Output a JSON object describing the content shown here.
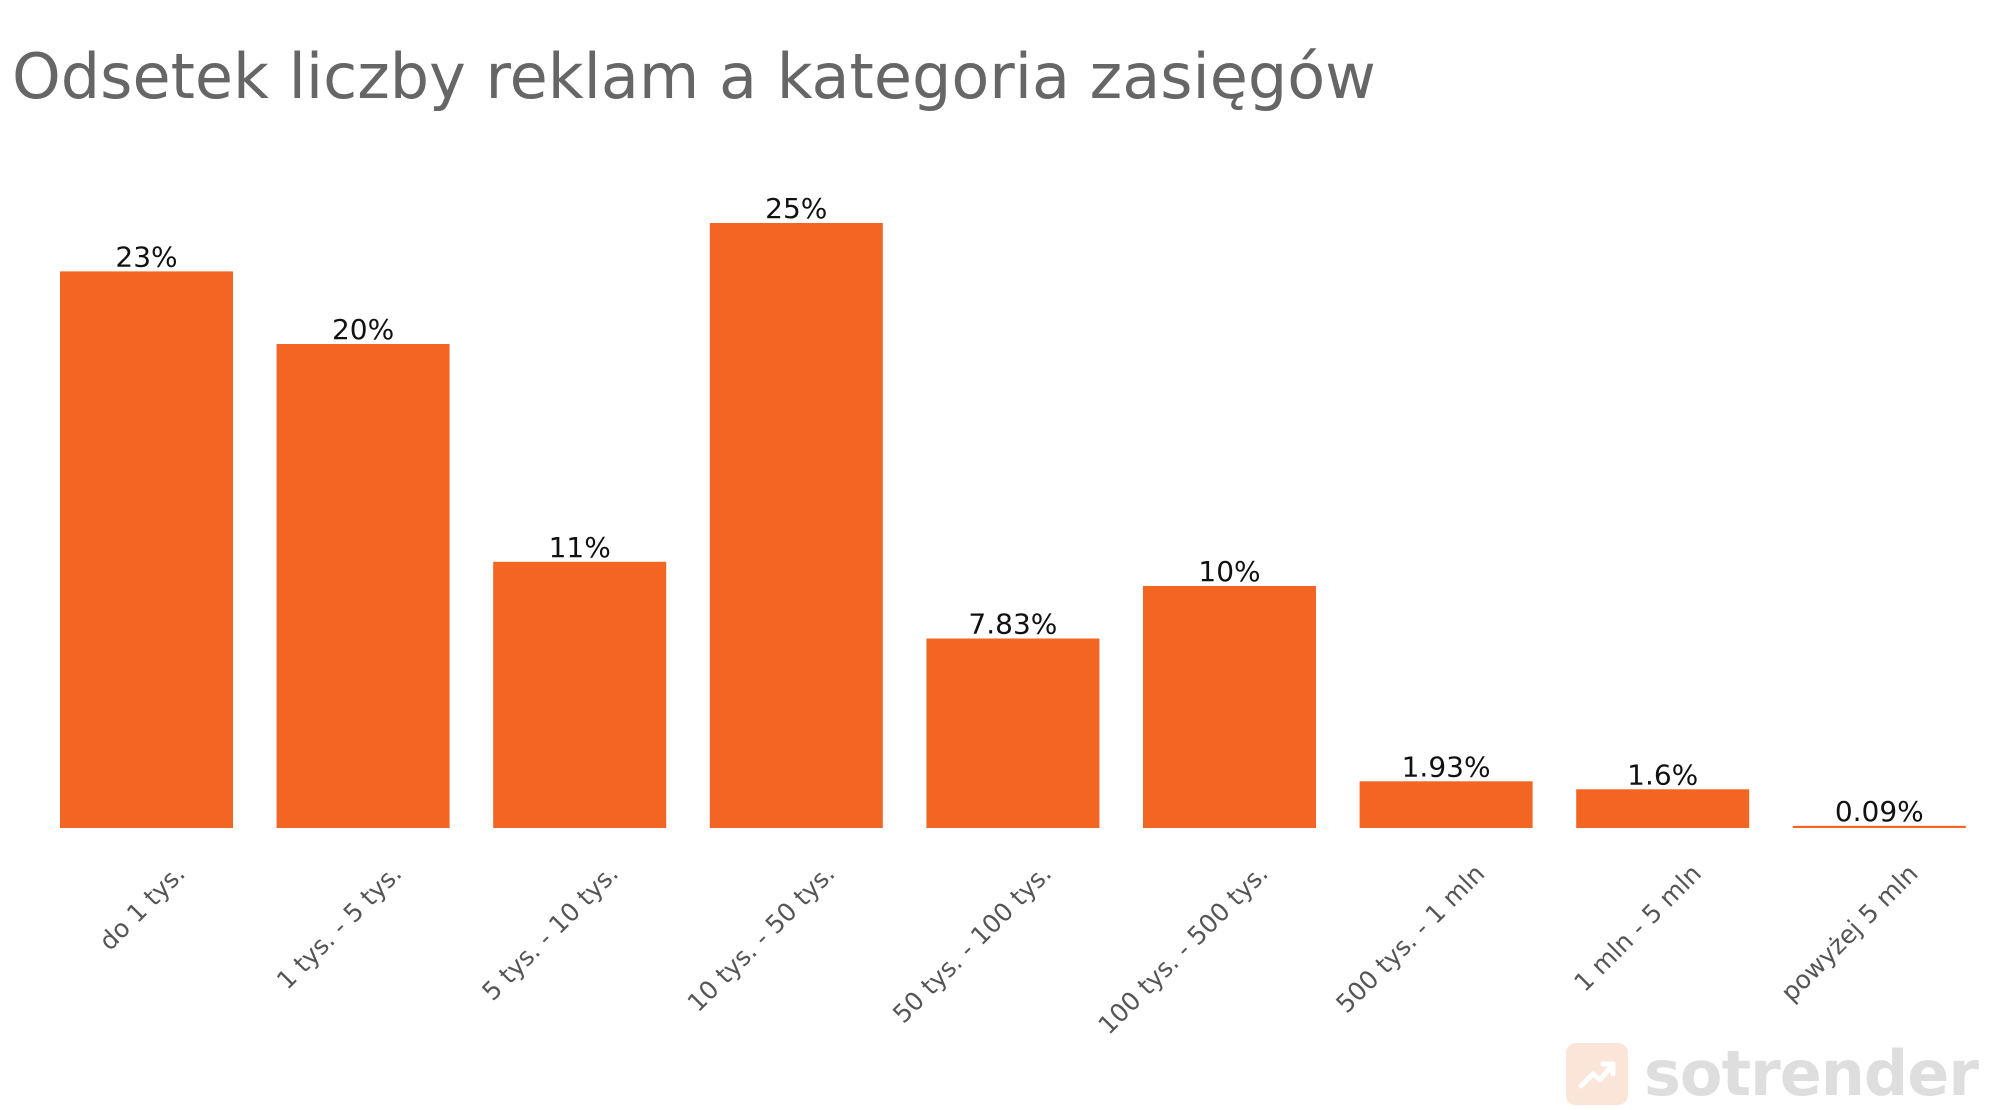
{
  "title": "Odsetek liczby reklam a kategoria zasięgów",
  "brand": {
    "name": "sotrender",
    "icon": "trend-arrow-icon",
    "color": "#f4a37a"
  },
  "colors": {
    "bar": "#f26522",
    "title": "#666666",
    "value_label": "#111111",
    "tick_label": "#555555"
  },
  "chart_data": {
    "type": "bar",
    "title": "Odsetek liczby reklam a kategoria zasięgów",
    "xlabel": "",
    "ylabel": "",
    "ylim": [
      0,
      25
    ],
    "grid": false,
    "categories": [
      "do 1 tys.",
      "1 tys. - 5 tys.",
      "5 tys. - 10 tys.",
      "10 tys. - 50 tys.",
      "50 tys. - 100 tys.",
      "100 tys. - 500 tys.",
      "500 tys. - 1 mln",
      "1 mln - 5 mln",
      "powyżej 5 mln"
    ],
    "values": [
      23,
      20,
      11,
      25,
      7.83,
      10,
      1.93,
      1.6,
      0.09
    ],
    "data_labels": [
      "23%",
      "20%",
      "11%",
      "25%",
      "7.83%",
      "10%",
      "1.93%",
      "1.6%",
      "0.09%"
    ]
  }
}
